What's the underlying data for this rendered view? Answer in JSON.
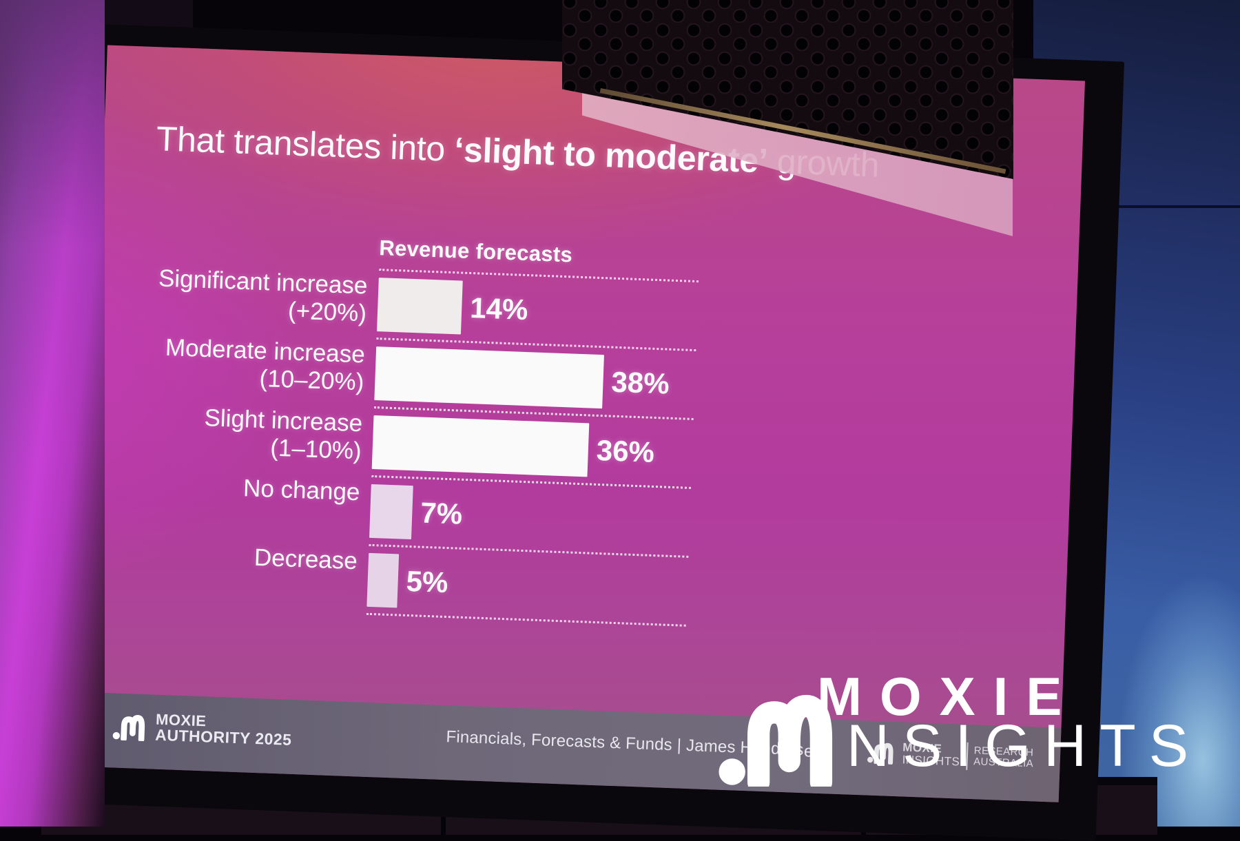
{
  "slide": {
    "title": {
      "prefix": "That translates into ",
      "emphasis": "‘slight to moderate’",
      "suffix": " growth"
    },
    "footer": {
      "event_logo": {
        "line1": "MOXIE",
        "line2": "AUTHORITY 2025"
      },
      "session": "Financials, Forecasts & Funds  |  James Henders",
      "session_fragment": "ess",
      "brand": {
        "name_line1": "MOXIE",
        "name_line2": "INSIGHTS",
        "org_line1": "RESEARCH",
        "org_line2": "AUSTRALIA"
      }
    }
  },
  "watermark": {
    "word1": "MOXIE",
    "word2": "INSIGHTS"
  },
  "chart_data": {
    "type": "bar",
    "orientation": "horizontal",
    "title": "Revenue forecasts",
    "categories": [
      "Significant increase (+20%)",
      "Moderate increase (10–20%)",
      "Slight increase (1–10%)",
      "No change",
      "Decrease"
    ],
    "categories_lines": [
      [
        "Significant increase",
        "(+20%)"
      ],
      [
        "Moderate increase",
        "(10–20%)"
      ],
      [
        "Slight increase",
        "(1–10%)"
      ],
      [
        "No change"
      ],
      [
        "Decrease"
      ]
    ],
    "values": [
      14,
      38,
      36,
      7,
      5
    ],
    "value_labels": [
      "14%",
      "38%",
      "36%",
      "7%",
      "5%"
    ],
    "xlim": [
      0,
      40
    ],
    "bar_colors": [
      "#efeceb",
      "#fbfafa",
      "#fbfafa",
      "#e8d7ea",
      "#e6d3e8"
    ],
    "separator_style": "dotted",
    "grid": "row-separators-only",
    "legend_position": "none"
  },
  "scene_colors": {
    "slide_magenta": "#b23b9e",
    "footer_band": "#6e6879",
    "curtain_purple": "#c83fd6",
    "wall_blue": "#2a4084",
    "wall_glow": "#9ec7e2",
    "bar_white": "#fbfafa",
    "bar_lavender": "#e6d3e8"
  }
}
